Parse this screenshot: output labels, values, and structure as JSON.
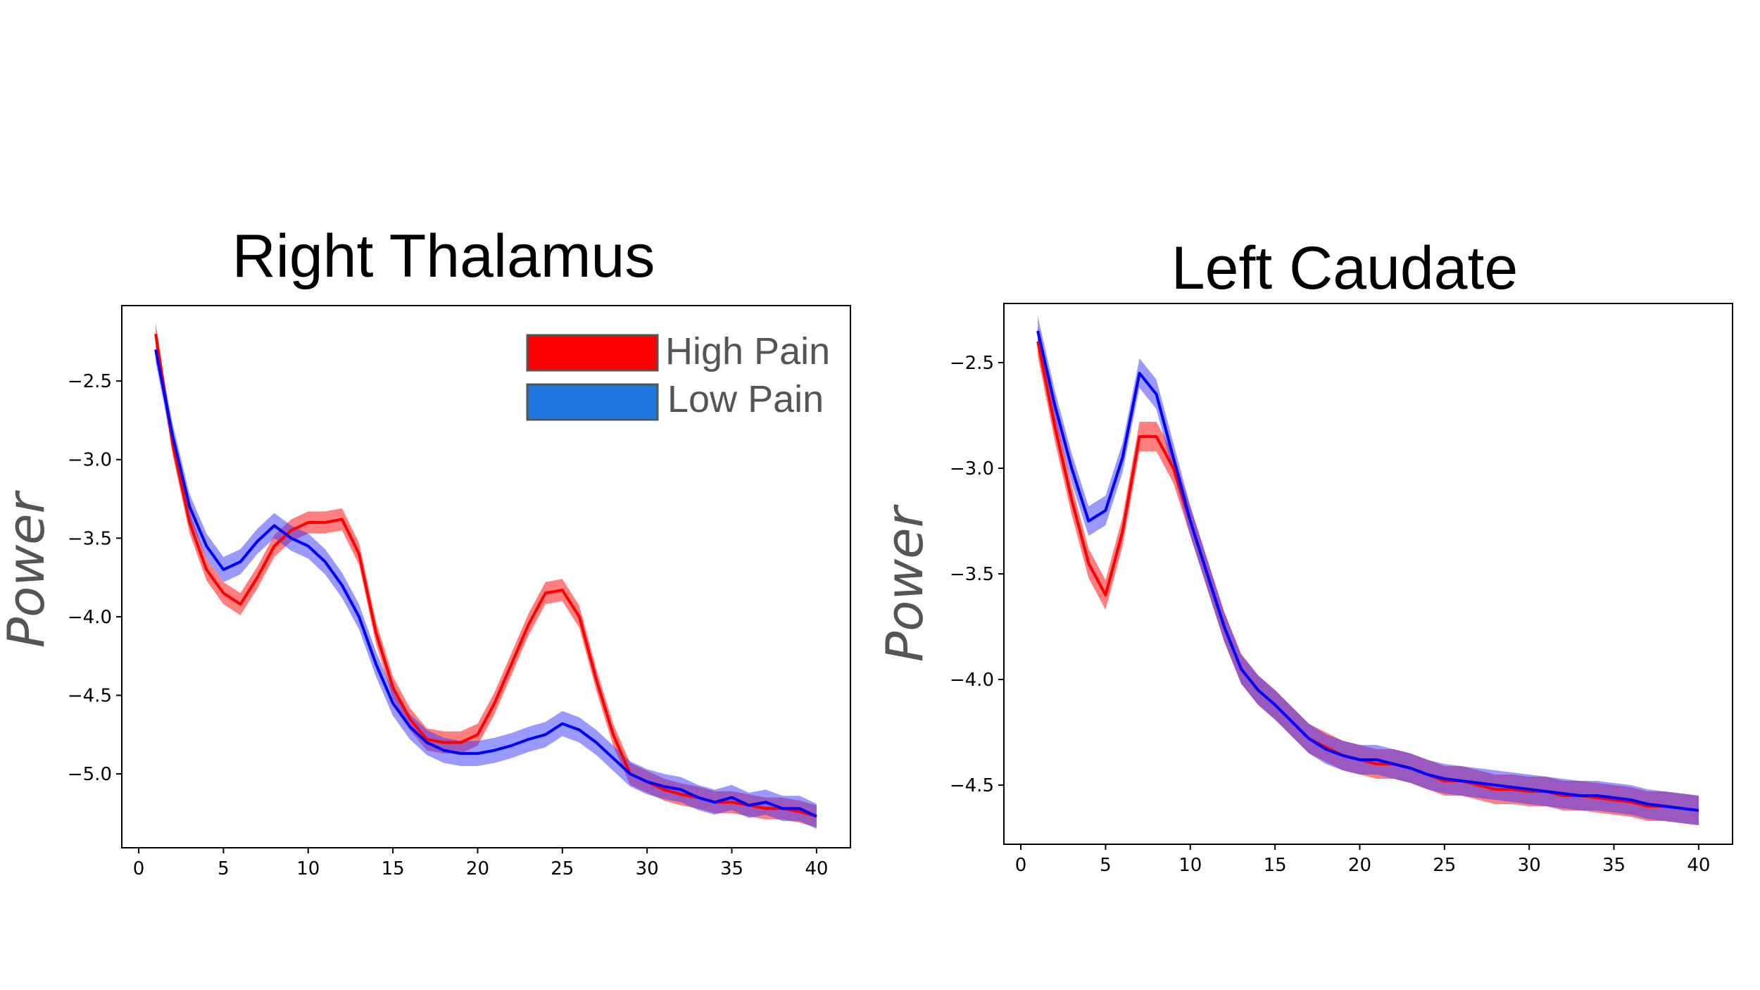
{
  "chart_data": [
    {
      "type": "line",
      "title": "Right Thalamus",
      "xlabel": "",
      "ylabel": "Power",
      "xlim": [
        -1,
        42
      ],
      "ylim": [
        -5.47,
        -2.02
      ],
      "xticks": [
        0,
        5,
        10,
        15,
        20,
        25,
        30,
        35,
        40
      ],
      "xtick_labels": [
        "0",
        "5",
        "10",
        "15",
        "20",
        "25",
        "30",
        "35",
        "40"
      ],
      "yticks": [
        -2.5,
        -3.0,
        -3.5,
        -4.0,
        -4.5,
        -5.0
      ],
      "ytick_labels": [
        "−2.5",
        "−3.0",
        "−3.5",
        "−4.0",
        "−4.5",
        "−5.0"
      ],
      "legend": {
        "placement": "top-right"
      },
      "series": [
        {
          "name": "High Pain",
          "color": "#ff0000",
          "band_color": "#ff0000",
          "x": [
            1,
            2,
            3,
            4,
            5,
            6,
            7,
            8,
            9,
            10,
            11,
            12,
            13,
            14,
            15,
            16,
            17,
            18,
            19,
            20,
            21,
            22,
            23,
            24,
            25,
            26,
            27,
            28,
            29,
            30,
            31,
            32,
            33,
            34,
            35,
            36,
            37,
            38,
            39,
            40
          ],
          "y": [
            -2.2,
            -2.9,
            -3.4,
            -3.7,
            -3.85,
            -3.92,
            -3.75,
            -3.55,
            -3.45,
            -3.4,
            -3.4,
            -3.38,
            -3.6,
            -4.1,
            -4.45,
            -4.65,
            -4.78,
            -4.8,
            -4.8,
            -4.75,
            -4.55,
            -4.3,
            -4.05,
            -3.85,
            -3.83,
            -4.0,
            -4.4,
            -4.75,
            -5.0,
            -5.05,
            -5.1,
            -5.13,
            -5.15,
            -5.18,
            -5.18,
            -5.2,
            -5.22,
            -5.22,
            -5.24,
            -5.27
          ],
          "band": 0.07
        },
        {
          "name": "Low Pain",
          "color": "#0000ff",
          "band_color": "#3333ff",
          "x": [
            1,
            2,
            3,
            4,
            5,
            6,
            7,
            8,
            9,
            10,
            11,
            12,
            13,
            14,
            15,
            16,
            17,
            18,
            19,
            20,
            21,
            22,
            23,
            24,
            25,
            26,
            27,
            28,
            29,
            30,
            31,
            32,
            33,
            34,
            35,
            36,
            37,
            38,
            39,
            40
          ],
          "y": [
            -2.3,
            -2.85,
            -3.3,
            -3.55,
            -3.7,
            -3.65,
            -3.52,
            -3.42,
            -3.5,
            -3.55,
            -3.65,
            -3.8,
            -4.0,
            -4.3,
            -4.55,
            -4.7,
            -4.8,
            -4.85,
            -4.87,
            -4.87,
            -4.85,
            -4.82,
            -4.78,
            -4.75,
            -4.68,
            -4.72,
            -4.8,
            -4.9,
            -5.0,
            -5.05,
            -5.08,
            -5.1,
            -5.15,
            -5.18,
            -5.15,
            -5.2,
            -5.18,
            -5.22,
            -5.22,
            -5.27
          ],
          "band": 0.08
        }
      ]
    },
    {
      "type": "line",
      "title": "Left Caudate",
      "xlabel": "",
      "ylabel": "Power",
      "xlim": [
        -1,
        42
      ],
      "ylim": [
        -4.78,
        -2.22
      ],
      "xticks": [
        0,
        5,
        10,
        15,
        20,
        25,
        30,
        35,
        40
      ],
      "xtick_labels": [
        "0",
        "5",
        "10",
        "15",
        "20",
        "25",
        "30",
        "35",
        "40"
      ],
      "yticks": [
        -2.5,
        -3.0,
        -3.5,
        -4.0,
        -4.5
      ],
      "ytick_labels": [
        "−2.5",
        "−3.0",
        "−3.5",
        "−4.0",
        "−4.5"
      ],
      "series": [
        {
          "name": "High Pain",
          "color": "#ff0000",
          "band_color": "#ff0000",
          "x": [
            1,
            2,
            3,
            4,
            5,
            6,
            7,
            8,
            9,
            10,
            11,
            12,
            13,
            14,
            15,
            16,
            17,
            18,
            19,
            20,
            21,
            22,
            23,
            24,
            25,
            26,
            27,
            28,
            29,
            30,
            31,
            32,
            33,
            34,
            35,
            36,
            37,
            38,
            39,
            40
          ],
          "y": [
            -2.4,
            -2.8,
            -3.15,
            -3.45,
            -3.6,
            -3.3,
            -2.85,
            -2.85,
            -3.0,
            -3.25,
            -3.5,
            -3.75,
            -3.95,
            -4.05,
            -4.12,
            -4.2,
            -4.28,
            -4.32,
            -4.36,
            -4.38,
            -4.4,
            -4.4,
            -4.42,
            -4.45,
            -4.48,
            -4.48,
            -4.5,
            -4.52,
            -4.52,
            -4.53,
            -4.53,
            -4.55,
            -4.55,
            -4.56,
            -4.57,
            -4.58,
            -4.6,
            -4.6,
            -4.61,
            -4.62
          ],
          "band": 0.07
        },
        {
          "name": "Low Pain",
          "color": "#0000ff",
          "band_color": "#3333ff",
          "x": [
            1,
            2,
            3,
            4,
            5,
            6,
            7,
            8,
            9,
            10,
            11,
            12,
            13,
            14,
            15,
            16,
            17,
            18,
            19,
            20,
            21,
            22,
            23,
            24,
            25,
            26,
            27,
            28,
            29,
            30,
            31,
            32,
            33,
            34,
            35,
            36,
            37,
            38,
            39,
            40
          ],
          "y": [
            -2.35,
            -2.7,
            -3.0,
            -3.25,
            -3.2,
            -2.95,
            -2.55,
            -2.65,
            -2.95,
            -3.25,
            -3.5,
            -3.75,
            -3.95,
            -4.05,
            -4.12,
            -4.2,
            -4.28,
            -4.33,
            -4.36,
            -4.38,
            -4.38,
            -4.4,
            -4.42,
            -4.45,
            -4.47,
            -4.48,
            -4.49,
            -4.5,
            -4.51,
            -4.52,
            -4.53,
            -4.54,
            -4.55,
            -4.55,
            -4.56,
            -4.57,
            -4.59,
            -4.6,
            -4.61,
            -4.62
          ],
          "band": 0.07
        }
      ]
    }
  ]
}
